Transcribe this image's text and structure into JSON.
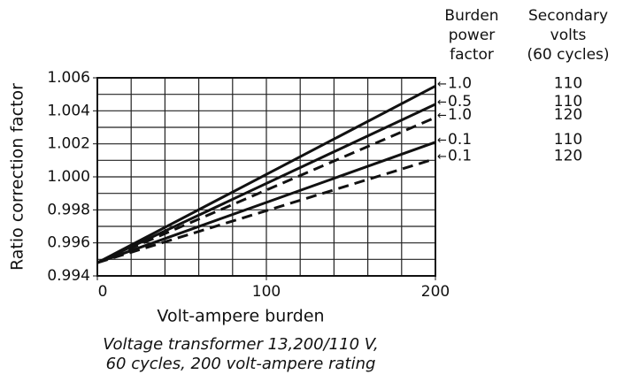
{
  "chart_data": {
    "type": "line",
    "x_label": "Volt-ampere burden",
    "y_label": "Ratio correction factor",
    "caption": [
      "Voltage transformer 13,200/110 V,",
      "60 cycles, 200 volt-ampere rating"
    ],
    "legend_headers": [
      [
        "Burden",
        "power",
        "factor"
      ],
      [
        "Secondary",
        "volts",
        "(60 cycles)"
      ]
    ],
    "x": [
      0,
      200
    ],
    "series": [
      {
        "name": "1.0",
        "volts": "110",
        "dashed": false,
        "color": "#111111",
        "values": [
          0.9948,
          1.0055
        ]
      },
      {
        "name": "0.5",
        "volts": "110",
        "dashed": false,
        "color": "#111111",
        "values": [
          0.9948,
          1.0044
        ]
      },
      {
        "name": "1.0",
        "volts": "120",
        "dashed": true,
        "color": "#111111",
        "values": [
          0.9948,
          1.0036
        ]
      },
      {
        "name": "0.1",
        "volts": "110",
        "dashed": false,
        "color": "#111111",
        "values": [
          0.9948,
          1.0021
        ]
      },
      {
        "name": "0.1",
        "volts": "120",
        "dashed": true,
        "color": "#111111",
        "values": [
          0.9948,
          1.0011
        ]
      }
    ],
    "xlim": [
      0,
      200
    ],
    "xticks": [
      0,
      100,
      200
    ],
    "ylim": [
      0.994,
      1.006
    ],
    "yticks": [
      0.994,
      0.996,
      0.998,
      {
        "value": 1,
        "label": "1.000"
      },
      1.002,
      1.004,
      1.006
    ],
    "xgrid": [
      0,
      20,
      40,
      60,
      80,
      100,
      120,
      140,
      160,
      180,
      200
    ],
    "ygrid": [
      0.994,
      0.995,
      0.996,
      0.997,
      0.998,
      0.999,
      1,
      1.001,
      1.002,
      1.003,
      1.004,
      1.005,
      1.006
    ],
    "grid": true
  }
}
